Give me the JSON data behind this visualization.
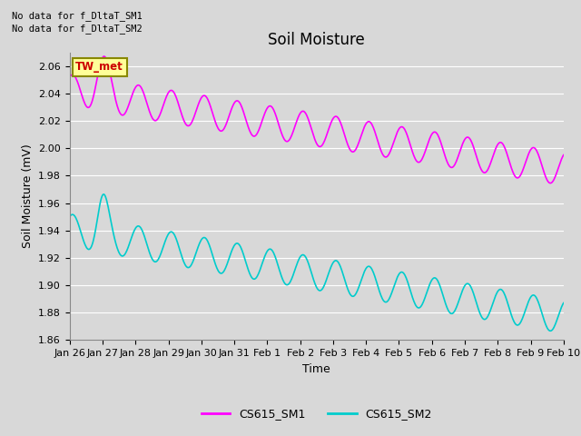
{
  "title": "Soil Moisture",
  "ylabel": "Soil Moisture (mV)",
  "xlabel": "Time",
  "no_data_text_1": "No data for f_DltaT_SM1",
  "no_data_text_2": "No data for f_DltaT_SM2",
  "annotation_label": "TW_met",
  "annotation_color": "#cc0000",
  "annotation_bg": "#ffff99",
  "annotation_border": "#888800",
  "ylim": [
    1.86,
    2.07
  ],
  "yticks": [
    1.86,
    1.88,
    1.9,
    1.92,
    1.94,
    1.96,
    1.98,
    2.0,
    2.02,
    2.04,
    2.06
  ],
  "xtick_labels": [
    "Jan 26",
    "Jan 27",
    "Jan 28",
    "Jan 29",
    "Jan 30",
    "Jan 31",
    "Feb 1",
    "Feb 2",
    "Feb 3",
    "Feb 4",
    "Feb 5",
    "Feb 6",
    "Feb 7",
    "Feb 8",
    "Feb 9",
    "Feb 10"
  ],
  "color_sm1": "#ff00ff",
  "color_sm2": "#00cccc",
  "legend_labels": [
    "CS615_SM1",
    "CS615_SM2"
  ],
  "bg_color": "#d8d8d8",
  "plot_bg_color": "#d8d8d8",
  "grid_color": "#ffffff",
  "title_fontsize": 12,
  "label_fontsize": 9,
  "tick_fontsize": 8,
  "linewidth": 1.2
}
